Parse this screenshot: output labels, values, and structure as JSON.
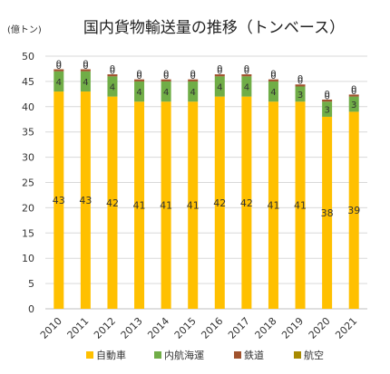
{
  "chart_data": {
    "type": "bar",
    "stacked": true,
    "title": "国内貨物輸送量の推移（トンベース）",
    "unit_label": "(億トン)",
    "categories": [
      "2010",
      "2011",
      "2012",
      "2013",
      "2014",
      "2015",
      "2016",
      "2017",
      "2018",
      "2019",
      "2020",
      "2021"
    ],
    "ylim": [
      0,
      50
    ],
    "yticks": [
      0,
      5,
      10,
      15,
      20,
      25,
      30,
      35,
      40,
      45,
      50
    ],
    "grid": true,
    "legend_position": "bottom",
    "series": [
      {
        "name": "自動車",
        "color": "#FFC000",
        "values": [
          43,
          43,
          42,
          41,
          41,
          41,
          42,
          42,
          41,
          41,
          38,
          39
        ]
      },
      {
        "name": "内航海運",
        "color": "#70AD47",
        "values": [
          4,
          4,
          4,
          4,
          4,
          4,
          4,
          4,
          4,
          3,
          3,
          3
        ]
      },
      {
        "name": "鉄道",
        "color": "#A0522D",
        "values": [
          0.4,
          0.4,
          0.4,
          0.4,
          0.4,
          0.4,
          0.4,
          0.4,
          0.4,
          0.4,
          0.4,
          0.4
        ]
      },
      {
        "name": "航空",
        "color": "#A88A00",
        "values": [
          0,
          0,
          0,
          0,
          0,
          0,
          0,
          0,
          0,
          0,
          0,
          0
        ]
      }
    ],
    "data_labels": [
      [
        "43",
        "43",
        "42",
        "41",
        "41",
        "41",
        "42",
        "42",
        "41",
        "41",
        "38",
        "39"
      ],
      [
        "4",
        "4",
        "4",
        "4",
        "4",
        "4",
        "4",
        "4",
        "4",
        "3",
        "3",
        "3"
      ],
      [
        "0",
        "0",
        "0",
        "0",
        "0",
        "0",
        "0",
        "0",
        "0",
        "0",
        "0",
        "0"
      ],
      [
        "0",
        "0",
        "0",
        "0",
        "0",
        "0",
        "0",
        "0",
        "0",
        "0",
        "0",
        "0"
      ]
    ]
  }
}
